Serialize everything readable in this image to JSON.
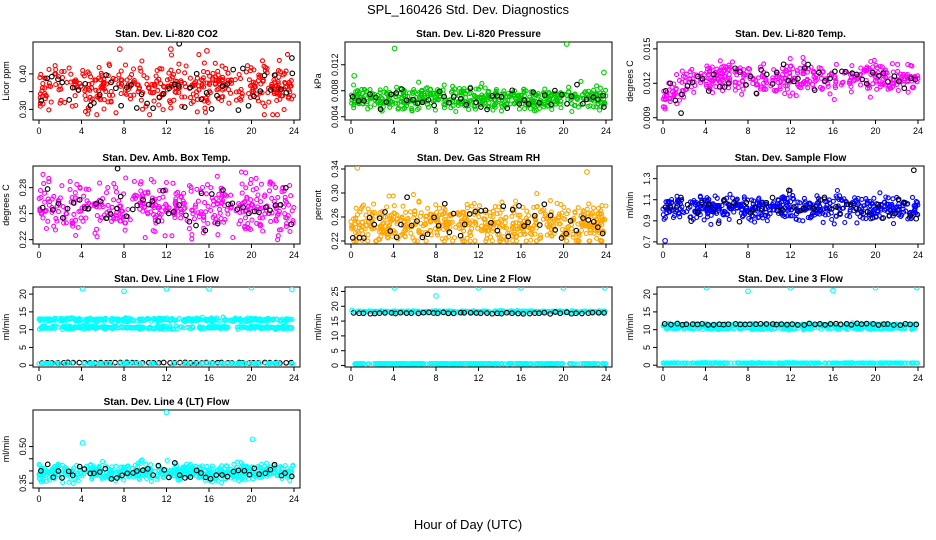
{
  "figure": {
    "title": "SPL_160426  Std. Dev. Diagnostics",
    "xlabel": "Hour of Day (UTC)"
  },
  "colors": {
    "black": "#000000",
    "red": "#ff0000",
    "green": "#00cc00",
    "magenta": "#ff00ff",
    "orange": "#ffa500",
    "blue": "#0000ff",
    "cyan": "#00ffff"
  },
  "chart_data": [
    {
      "type": "scatter",
      "title": "Stan. Dev. Li-820 CO2",
      "ylabel": "Licor ppm",
      "xlim": [
        0,
        24
      ],
      "ylim": [
        0.27,
        0.49
      ],
      "xticks": [
        0,
        4,
        8,
        12,
        16,
        20,
        24
      ],
      "yticks": [
        0.3,
        0.35,
        0.4
      ],
      "ytick_labels": [
        "0.30",
        "",
        "0.40"
      ],
      "series": [
        {
          "color": "red",
          "center": 0.365,
          "spread": 0.035,
          "min": 0.285,
          "max": 0.455,
          "n": 420
        },
        {
          "color": "black",
          "center": 0.365,
          "spread": 0.03,
          "min": 0.29,
          "max": 0.46,
          "n": 48
        }
      ],
      "outliers": [
        {
          "x": 7.6,
          "y": 0.47,
          "color": "red"
        },
        {
          "x": 12.4,
          "y": 0.47,
          "color": "red"
        },
        {
          "x": 15.8,
          "y": 0.465,
          "color": "red"
        },
        {
          "x": 13.2,
          "y": 0.485,
          "color": "black"
        },
        {
          "x": 23.8,
          "y": 0.445,
          "color": "black"
        }
      ]
    },
    {
      "type": "scatter",
      "title": "Stan. Dev. Li-820 Pressure",
      "ylabel": "kPa",
      "xlim": [
        0,
        24
      ],
      "ylim": [
        0.0035,
        0.0155
      ],
      "xticks": [
        0,
        4,
        8,
        12,
        16,
        20,
        24
      ],
      "yticks": [
        0.004,
        0.008,
        0.012
      ],
      "ytick_labels": [
        "0.004",
        "0.008",
        "0.012"
      ],
      "series": [
        {
          "color": "green",
          "center": 0.0068,
          "spread": 0.0009,
          "min": 0.0048,
          "max": 0.0095,
          "n": 520
        },
        {
          "color": "black",
          "center": 0.0068,
          "spread": 0.0008,
          "min": 0.005,
          "max": 0.009,
          "n": 48
        }
      ],
      "outliers": [
        {
          "x": 0.3,
          "y": 0.0103,
          "color": "green"
        },
        {
          "x": 4.1,
          "y": 0.0145,
          "color": "green"
        },
        {
          "x": 20.3,
          "y": 0.0152,
          "color": "green"
        },
        {
          "x": 23.8,
          "y": 0.0108,
          "color": "green"
        },
        {
          "x": 23.8,
          "y": 0.0055,
          "color": "black"
        }
      ]
    },
    {
      "type": "scatter",
      "title": "Stan. Dev. Li-820 Temp.",
      "ylabel": "degrees C",
      "xlim": [
        0,
        24
      ],
      "ylim": [
        0.0088,
        0.0156
      ],
      "xticks": [
        0,
        4,
        8,
        12,
        16,
        20,
        24
      ],
      "yticks": [
        0.009,
        0.012,
        0.015
      ],
      "ytick_labels": [
        "0.009",
        "0.012",
        "0.015"
      ],
      "series": [
        {
          "color": "magenta",
          "center": 0.0125,
          "spread": 0.0007,
          "min": 0.0092,
          "max": 0.0152,
          "n": 420,
          "dip": true
        },
        {
          "color": "black",
          "center": 0.0125,
          "spread": 0.0006,
          "min": 0.0095,
          "max": 0.014,
          "n": 48,
          "dip": true
        }
      ],
      "outliers": [
        {
          "x": 1.7,
          "y": 0.0094,
          "color": "black"
        }
      ]
    },
    {
      "type": "scatter",
      "title": "Stan. Dev. Amb. Box Temp.",
      "ylabel": "degrees C",
      "xlim": [
        0,
        24
      ],
      "ylim": [
        0.215,
        0.305
      ],
      "xticks": [
        0,
        4,
        8,
        12,
        16,
        20,
        24
      ],
      "yticks": [
        0.22,
        0.25,
        0.28
      ],
      "ytick_labels": [
        "0.22",
        "0.25",
        "0.28"
      ],
      "series": [
        {
          "color": "magenta",
          "center": 0.258,
          "spread": 0.015,
          "min": 0.22,
          "max": 0.298,
          "n": 420
        },
        {
          "color": "black",
          "center": 0.258,
          "spread": 0.013,
          "min": 0.222,
          "max": 0.302,
          "n": 48
        }
      ],
      "outliers": [
        {
          "x": 7.4,
          "y": 0.302,
          "color": "black"
        }
      ]
    },
    {
      "type": "scatter",
      "title": "Stan. Dev. Gas Stream RH",
      "ylabel": "percent",
      "xlim": [
        0,
        24
      ],
      "ylim": [
        0.215,
        0.345
      ],
      "xticks": [
        0,
        4,
        8,
        12,
        16,
        20,
        24
      ],
      "yticks": [
        0.22,
        0.26,
        0.3,
        0.34
      ],
      "ytick_labels": [
        "0.22",
        "0.26",
        "0.30",
        "0.34"
      ],
      "series": [
        {
          "color": "orange",
          "center": 0.25,
          "spread": 0.018,
          "min": 0.22,
          "max": 0.325,
          "n": 560
        },
        {
          "color": "black",
          "center": 0.255,
          "spread": 0.016,
          "min": 0.225,
          "max": 0.3,
          "n": 48
        }
      ],
      "outliers": [
        {
          "x": 0.6,
          "y": 0.342,
          "color": "orange"
        },
        {
          "x": 22.2,
          "y": 0.335,
          "color": "orange"
        }
      ]
    },
    {
      "type": "scatter",
      "title": "Stan. Dev. Sample Flow",
      "ylabel": "ml/min",
      "xlim": [
        0,
        24
      ],
      "ylim": [
        0.68,
        1.42
      ],
      "xticks": [
        0,
        4,
        8,
        12,
        16,
        20,
        24
      ],
      "yticks": [
        0.7,
        0.9,
        1.1,
        1.3
      ],
      "ytick_labels": [
        "0.7",
        "0.9",
        "1.1",
        "1.3"
      ],
      "series": [
        {
          "color": "blue",
          "center": 1.02,
          "spread": 0.06,
          "min": 0.72,
          "max": 1.32,
          "n": 520
        },
        {
          "color": "black",
          "center": 1.03,
          "spread": 0.07,
          "min": 0.78,
          "max": 1.38,
          "n": 48
        }
      ],
      "outliers": [
        {
          "x": 0.2,
          "y": 0.71,
          "color": "blue"
        },
        {
          "x": 23.6,
          "y": 1.38,
          "color": "black"
        }
      ]
    },
    {
      "type": "scatter",
      "title": "Stan. Dev. Line 1 Flow",
      "ylabel": "ml/min",
      "xlim": [
        0,
        24
      ],
      "ylim": [
        -0.5,
        22
      ],
      "xticks": [
        0,
        4,
        8,
        12,
        16,
        20,
        24
      ],
      "yticks": [
        0,
        5,
        10,
        15,
        20
      ],
      "ytick_labels": [
        "0",
        "5",
        "10",
        "15",
        "20"
      ],
      "series": [
        {
          "color": "cyan",
          "center": 12.8,
          "spread": 0.25,
          "min": 12.0,
          "max": 13.6,
          "n": 300,
          "dx": 0.08
        },
        {
          "color": "cyan",
          "center": 10.6,
          "spread": 0.25,
          "min": 9.8,
          "max": 11.4,
          "n": 300,
          "dx": 0.08
        },
        {
          "color": "black",
          "center": 0.7,
          "spread": 0.05,
          "min": 0.5,
          "max": 0.9,
          "n": 48
        },
        {
          "color": "cyan",
          "center": 0.5,
          "spread": 0.05,
          "min": 0.3,
          "max": 0.7,
          "n": 120
        }
      ],
      "outliers": [
        {
          "x": 4.1,
          "y": 21.5,
          "color": "cyan"
        },
        {
          "x": 8.0,
          "y": 20.8,
          "color": "cyan"
        },
        {
          "x": 12.0,
          "y": 21.5,
          "color": "cyan"
        },
        {
          "x": 16.0,
          "y": 21.5,
          "color": "cyan"
        },
        {
          "x": 20.0,
          "y": 21.8,
          "color": "cyan"
        },
        {
          "x": 23.8,
          "y": 21.3,
          "color": "cyan"
        }
      ]
    },
    {
      "type": "scatter",
      "title": "Stan. Dev. Line 2 Flow",
      "ylabel": "ml/min",
      "xlim": [
        0,
        24
      ],
      "ylim": [
        -0.5,
        26.5
      ],
      "xticks": [
        0,
        4,
        8,
        12,
        16,
        20,
        24
      ],
      "yticks": [
        0,
        5,
        10,
        15,
        20,
        25
      ],
      "ytick_labels": [
        "0",
        "5",
        "10",
        "15",
        "20",
        "25"
      ],
      "series": [
        {
          "color": "cyan",
          "center": 18.2,
          "spread": 0.15,
          "min": 17.6,
          "max": 18.8,
          "n": 300,
          "dx": 0.08
        },
        {
          "color": "black",
          "center": 17.7,
          "spread": 0.15,
          "min": 17.2,
          "max": 18.2,
          "n": 48
        },
        {
          "color": "cyan",
          "center": 0.6,
          "spread": 0.05,
          "min": 0.4,
          "max": 0.8,
          "n": 300,
          "dx": 0.08
        }
      ],
      "outliers": [
        {
          "x": 0.1,
          "y": 18.6,
          "color": "cyan"
        },
        {
          "x": 4.1,
          "y": 26.2,
          "color": "cyan"
        },
        {
          "x": 8.0,
          "y": 23.5,
          "color": "cyan"
        },
        {
          "x": 12.0,
          "y": 26.2,
          "color": "cyan"
        },
        {
          "x": 16.0,
          "y": 26.2,
          "color": "cyan"
        },
        {
          "x": 20.0,
          "y": 26.2,
          "color": "cyan"
        },
        {
          "x": 23.9,
          "y": 26.2,
          "color": "cyan"
        }
      ]
    },
    {
      "type": "scatter",
      "title": "Stan. Dev. Line 3 Flow",
      "ylabel": "ml/min",
      "xlim": [
        0,
        24
      ],
      "ylim": [
        -0.5,
        22
      ],
      "xticks": [
        0,
        4,
        8,
        12,
        16,
        20,
        24
      ],
      "yticks": [
        0,
        5,
        10,
        15,
        20
      ],
      "ytick_labels": [
        "0",
        "5",
        "10",
        "15",
        "20"
      ],
      "series": [
        {
          "color": "cyan",
          "center": 11.3,
          "spread": 0.2,
          "min": 10.6,
          "max": 12.0,
          "n": 300,
          "dx": 0.08
        },
        {
          "color": "cyan",
          "center": 10.4,
          "spread": 0.2,
          "min": 9.8,
          "max": 11.0,
          "n": 200,
          "dx": 0.08
        },
        {
          "color": "black",
          "center": 11.5,
          "spread": 0.15,
          "min": 11.0,
          "max": 12.0,
          "n": 48
        },
        {
          "color": "cyan",
          "center": 0.6,
          "spread": 0.05,
          "min": 0.4,
          "max": 0.8,
          "n": 300,
          "dx": 0.08
        }
      ],
      "outliers": [
        {
          "x": 4.1,
          "y": 21.8,
          "color": "cyan"
        },
        {
          "x": 8.0,
          "y": 20.8,
          "color": "cyan"
        },
        {
          "x": 12.0,
          "y": 21.8,
          "color": "cyan"
        },
        {
          "x": 16.0,
          "y": 21.0,
          "color": "cyan"
        },
        {
          "x": 20.0,
          "y": 21.8,
          "color": "cyan"
        },
        {
          "x": 23.9,
          "y": 21.8,
          "color": "cyan"
        }
      ]
    },
    {
      "type": "scatter",
      "title": "Stan. Dev. Line 4 (LT) Flow",
      "ylabel": "ml/min",
      "xlim": [
        0,
        24
      ],
      "ylim": [
        0.33,
        0.65
      ],
      "xticks": [
        0,
        4,
        8,
        12,
        16,
        20,
        24
      ],
      "yticks": [
        0.35,
        0.4,
        0.45,
        0.5
      ],
      "ytick_labels": [
        "0.35",
        "",
        "",
        "0.50"
      ],
      "series": [
        {
          "color": "cyan",
          "center": 0.395,
          "spread": 0.018,
          "min": 0.345,
          "max": 0.45,
          "n": 520
        },
        {
          "color": "black",
          "center": 0.395,
          "spread": 0.017,
          "min": 0.36,
          "max": 0.44,
          "n": 48
        }
      ],
      "outliers": [
        {
          "x": 4.1,
          "y": 0.515,
          "color": "cyan"
        },
        {
          "x": 12.0,
          "y": 0.64,
          "color": "cyan"
        },
        {
          "x": 20.1,
          "y": 0.53,
          "color": "cyan"
        }
      ]
    }
  ]
}
